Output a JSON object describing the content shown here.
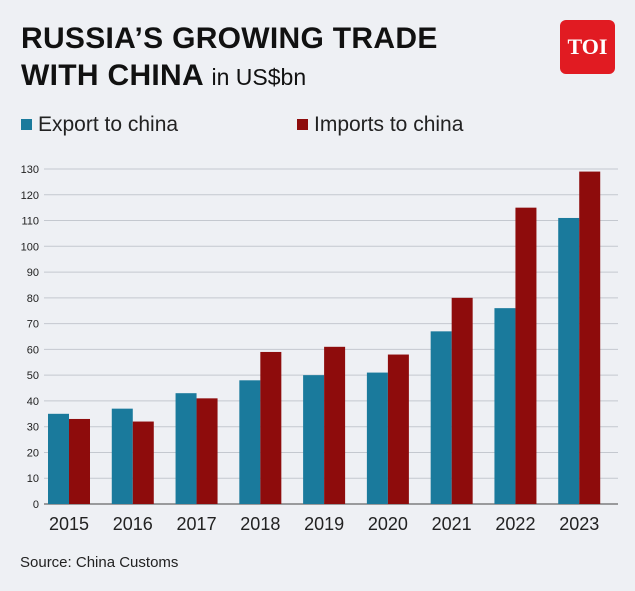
{
  "header": {
    "title_line1": "RUSSIA’S GROWING TRADE",
    "title_line2": "WITH CHINA",
    "unit": "in US$bn"
  },
  "logo": {
    "text": "TOI",
    "color": "#e11b22"
  },
  "legend": [
    {
      "label": "Export to china",
      "color": "#1a7a9c"
    },
    {
      "label": "Imports to china",
      "color": "#8e0c0c"
    }
  ],
  "source": "Source: China Customs",
  "chart_data": {
    "type": "bar",
    "categories": [
      "2015",
      "2016",
      "2017",
      "2018",
      "2019",
      "2020",
      "2021",
      "2022",
      "2023"
    ],
    "series": [
      {
        "name": "Export to china",
        "color": "#1a7a9c",
        "values": [
          35,
          37,
          43,
          48,
          50,
          51,
          67,
          76,
          111
        ]
      },
      {
        "name": "Imports to china",
        "color": "#8e0c0c",
        "values": [
          33,
          32,
          41,
          59,
          61,
          58,
          80,
          115,
          129
        ]
      }
    ],
    "yticks": [
      0,
      10,
      20,
      30,
      40,
      50,
      60,
      70,
      80,
      90,
      100,
      110,
      120,
      130
    ],
    "ylim": [
      0,
      130
    ],
    "grid": true,
    "legend_position": "top"
  }
}
